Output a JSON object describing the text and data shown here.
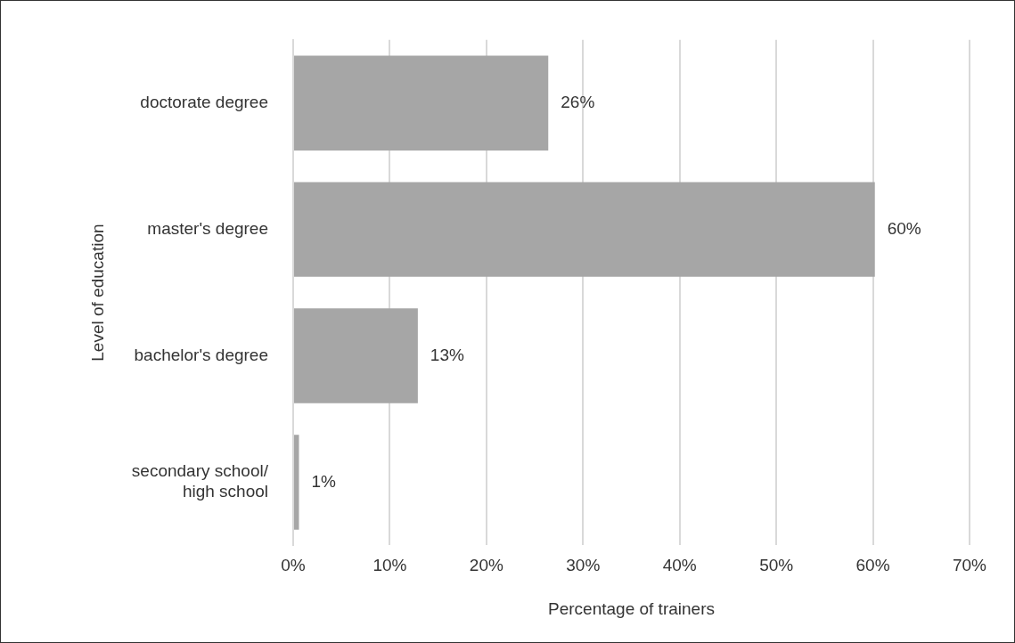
{
  "chart_data": {
    "type": "bar",
    "orientation": "horizontal",
    "xlabel": "Percentage of trainers",
    "ylabel": "Level of education",
    "categories": [
      "doctorate degree",
      "master's degree",
      "bachelor's degree",
      "secondary school/ high school"
    ],
    "values": [
      26.4,
      60.2,
      12.9,
      0.6
    ],
    "color": "#a6a6a6",
    "value_labels": [
      "26%",
      "60%",
      "13%",
      "1%"
    ],
    "xlim": [
      0,
      70
    ],
    "xticks": [
      {
        "value": 0,
        "label": "0%"
      },
      {
        "value": 10,
        "label": "10%"
      },
      {
        "value": 20,
        "label": "20%"
      },
      {
        "value": 30,
        "label": "30%"
      },
      {
        "value": 40,
        "label": "40%"
      },
      {
        "value": 50,
        "label": "50%"
      },
      {
        "value": 60,
        "label": "60%"
      },
      {
        "value": 70,
        "label": "70%"
      }
    ],
    "grid": "x",
    "legend": false
  }
}
